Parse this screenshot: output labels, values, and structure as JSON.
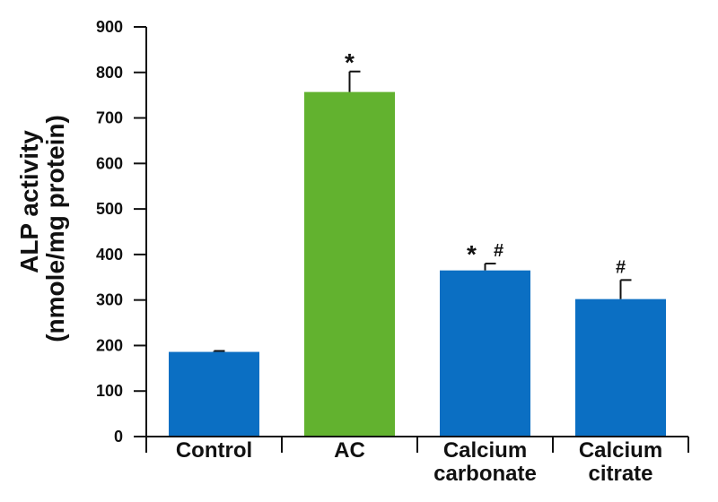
{
  "chart_data": {
    "type": "bar",
    "categories": [
      [
        "Control"
      ],
      [
        "AC"
      ],
      [
        "Calcium",
        "carbonate"
      ],
      [
        "Calcium",
        "citrate"
      ]
    ],
    "values": [
      186,
      757,
      365,
      302
    ],
    "errors": [
      2,
      45,
      15,
      42
    ],
    "bar_colors": [
      "#0b6fc3",
      "#62b22f",
      "#0b6fc3",
      "#0b6fc3"
    ],
    "significance": [
      [],
      [
        "*"
      ],
      [
        "*",
        "#"
      ],
      [
        "#"
      ]
    ],
    "ylabel_lines": [
      "ALP activity",
      "(nmole/mg protein)"
    ],
    "ylim": [
      0,
      900
    ],
    "yticks": [
      0,
      100,
      200,
      300,
      400,
      500,
      600,
      700,
      800,
      900
    ],
    "grid": false,
    "title": "",
    "xlabel": ""
  }
}
